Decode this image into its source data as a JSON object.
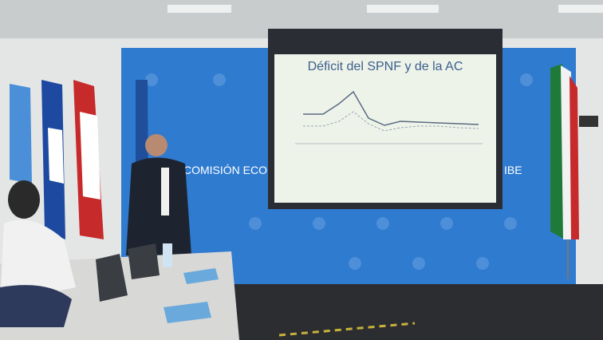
{
  "slide": {
    "title": "Déficit del SPNF y de la AC"
  },
  "backdrop": {
    "left_text": "COMISIÓN ECO",
    "right_text": "IBE"
  }
}
